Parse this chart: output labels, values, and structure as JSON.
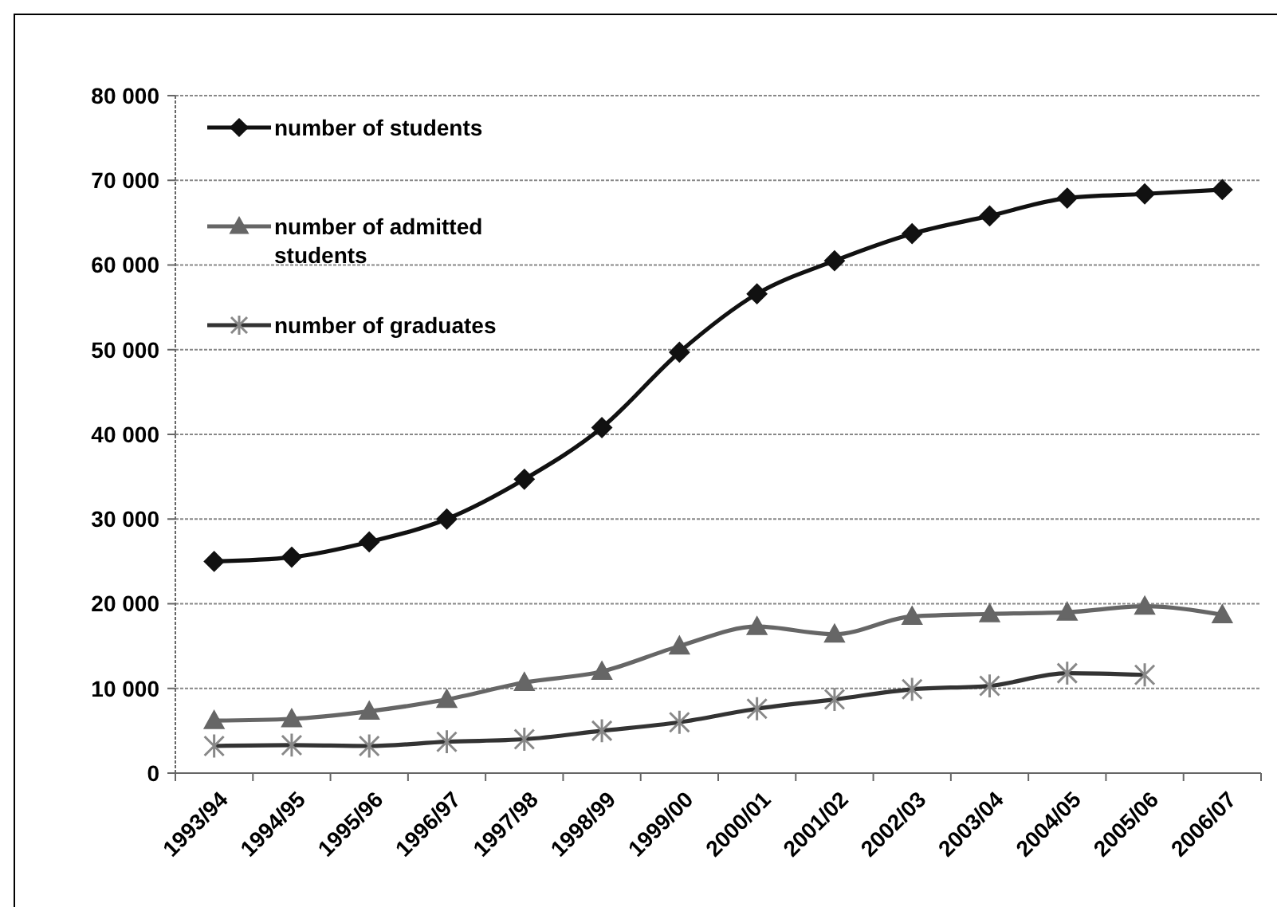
{
  "chart_data": {
    "type": "line",
    "categories": [
      "1993/94",
      "1994/95",
      "1995/96",
      "1996/97",
      "1997/98",
      "1998/99",
      "1999/00",
      "2000/01",
      "2001/02",
      "2002/03",
      "2003/04",
      "2004/05",
      "2005/06",
      "2006/07"
    ],
    "series": [
      {
        "name": "number of students",
        "color": "#111111",
        "marker": "diamond",
        "values": [
          25000,
          25500,
          27300,
          30000,
          34700,
          40800,
          49700,
          56600,
          60500,
          63700,
          65800,
          67900,
          68400,
          68900
        ]
      },
      {
        "name": "number of admitted students",
        "color": "#666666",
        "marker": "triangle",
        "values": [
          6200,
          6400,
          7300,
          8700,
          10700,
          12000,
          15000,
          17300,
          16400,
          18500,
          18800,
          19000,
          19700,
          18700
        ]
      },
      {
        "name": "number of graduates",
        "color": "#333333",
        "marker": "cross",
        "values": [
          3200,
          3300,
          3200,
          3700,
          4000,
          5000,
          6000,
          7600,
          8700,
          9900,
          10300,
          11800,
          11600,
          null
        ]
      }
    ],
    "ylim": [
      0,
      80000
    ],
    "yticks": [
      {
        "value": 0,
        "label": "0"
      },
      {
        "value": 10000,
        "label": "10 000"
      },
      {
        "value": 20000,
        "label": "20 000"
      },
      {
        "value": 30000,
        "label": "30 000"
      },
      {
        "value": 40000,
        "label": "40 000"
      },
      {
        "value": 50000,
        "label": "50 000"
      },
      {
        "value": 60000,
        "label": "60 000"
      },
      {
        "value": 70000,
        "label": "70 000"
      },
      {
        "value": 80000,
        "label": "80 000"
      }
    ],
    "grid": "y",
    "legend": "top left",
    "line_style": "solid"
  }
}
